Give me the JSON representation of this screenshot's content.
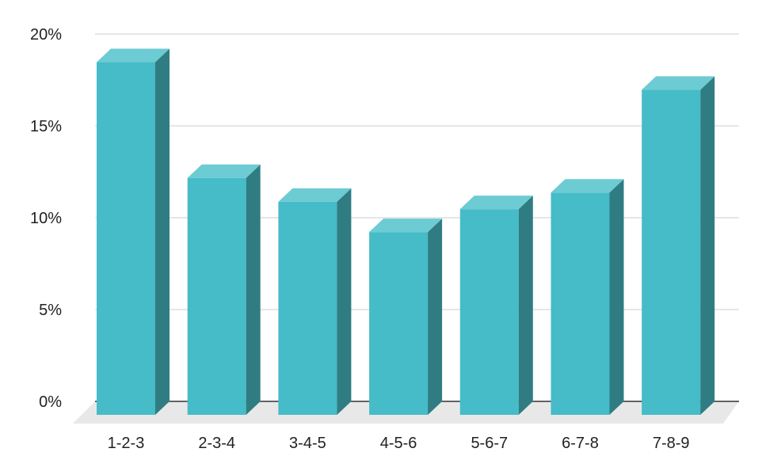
{
  "chart_data": {
    "type": "bar",
    "style": "3d",
    "categories": [
      "1-2-3",
      "2-3-4",
      "3-4-5",
      "4-5-6",
      "5-6-7",
      "6-7-8",
      "7-8-9"
    ],
    "values": [
      19.2,
      12.9,
      11.6,
      9.95,
      11.2,
      12.1,
      17.7
    ],
    "y_ticks": [
      "0%",
      "5%",
      "10%",
      "15%",
      "20%"
    ],
    "ylim": [
      0,
      20
    ],
    "grid": true,
    "legend": "none",
    "colors": {
      "bar_front": "#45bcc7",
      "bar_top": "#6ccbd3",
      "bar_side": "#2f7d82",
      "floor": "#e8e8e8",
      "grid": "#cccccc",
      "axis": "#333333"
    }
  }
}
